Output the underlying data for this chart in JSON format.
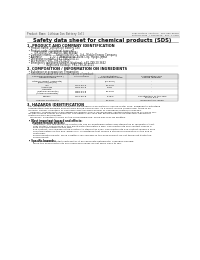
{
  "bg_color": "#ffffff",
  "header_left": "Product Name: Lithium Ion Battery Cell",
  "header_right_line1": "Publication Control: SPS-089-00010",
  "header_right_line2": "Established / Revision: Dec.1.2010",
  "title": "Safety data sheet for chemical products (SDS)",
  "section1_title": "1. PRODUCT AND COMPANY IDENTIFICATION",
  "section1_items": [
    "  • Product name: Lithium Ion Battery Cell",
    "  • Product code: Cylindrical-type cell",
    "         (UR18650J, UR18650U, UR18650A)",
    "  • Company name:      Sanyo Electric Co., Ltd.  Mobile Energy Company",
    "  • Address:           2-22-1  Kamitakaido, Suita-City, Hyogo, Japan",
    "  • Telephone number : +81-799-20-4111",
    "  • Fax number: +81-799-26-4120",
    "  • Emergency telephone number (daytime): +81-799-20-3642",
    "                         (Night and holiday): +81-799-26-4101"
  ],
  "section2_title": "2. COMPOSITION / INFORMATION ON INGREDIENTS",
  "section2_sub1": "  • Substance or preparation: Preparation",
  "section2_sub2": "  • Information about the chemical nature of product:",
  "table_headers": [
    "Chemical/chemical name /\nGeneral name",
    "CAS number",
    "Concentration /\nConcentration range",
    "Classification and\nhazard labeling"
  ],
  "table_rows": [
    [
      "Lithium cobalt (laminate)\n(LiMn-Co)(Ni)O2)",
      "-",
      "(30-60%)",
      "-"
    ],
    [
      "Iron",
      "7439-89-6",
      "15-25%",
      "-"
    ],
    [
      "Aluminum",
      "7429-90-5",
      "2-8%",
      "-"
    ],
    [
      "Graphite\n(Natural graphite)\n(Artificial graphite)",
      "7782-42-5\n7782-44-2",
      "10-25%",
      "-"
    ],
    [
      "Copper",
      "7440-50-8",
      "5-15%",
      "Sensitization of the skin\ngroup R4.2"
    ],
    [
      "Organic electrolyte",
      "-",
      "10-20%",
      "Inflammatory liquid"
    ]
  ],
  "section3_title": "3. HAZARDS IDENTIFICATION",
  "section3_para": [
    "  For the battery cell, chemical materials are stored in a hermetically sealed metal case, designed to withstand",
    "  temperature and pressure encountered during normal use. As a result, during normal use, there is no",
    "  physical danger of ignition or explosion and therefore danger of hazardous materials leakage.",
    "    However, if exposed to a fire added mechanical shock, decomposed, vented electro whose dry mass can.",
    "  By gas release cannot be operated. The battery cell case will be breached of the pressure, hazardous",
    "  materials may be released.",
    "    Moreover, if heated strongly by the surrounding fire, some gas may be emitted."
  ],
  "section3_bullet1": "  • Most important hazard and effects:",
  "section3_human": "      Human health effects:",
  "section3_human_items": [
    "        Inhalation: The release of the electrolyte has an anesthesia action and stimulates in respiratory tract.",
    "        Skin contact: The release of the electrolyte stimulates a skin. The electrolyte skin contact causes a",
    "        sore and stimulation on the skin.",
    "        Eye contact: The release of the electrolyte stimulates eyes. The electrolyte eye contact causes a sore",
    "        and stimulation on the eye. Especially, a substance that causes a strong inflammation of the eye is",
    "        contained.",
    "        Environmental effects: Since a battery cell remains in the environment, do not throw out it into the",
    "        environment."
  ],
  "section3_specific": "  • Specific hazards:",
  "section3_specific_items": [
    "        If the electrolyte contacts with water, it will generate detrimental hydrogen fluoride.",
    "        Since the used electrolyte is inflammable liquid, do not bring close to fire."
  ]
}
